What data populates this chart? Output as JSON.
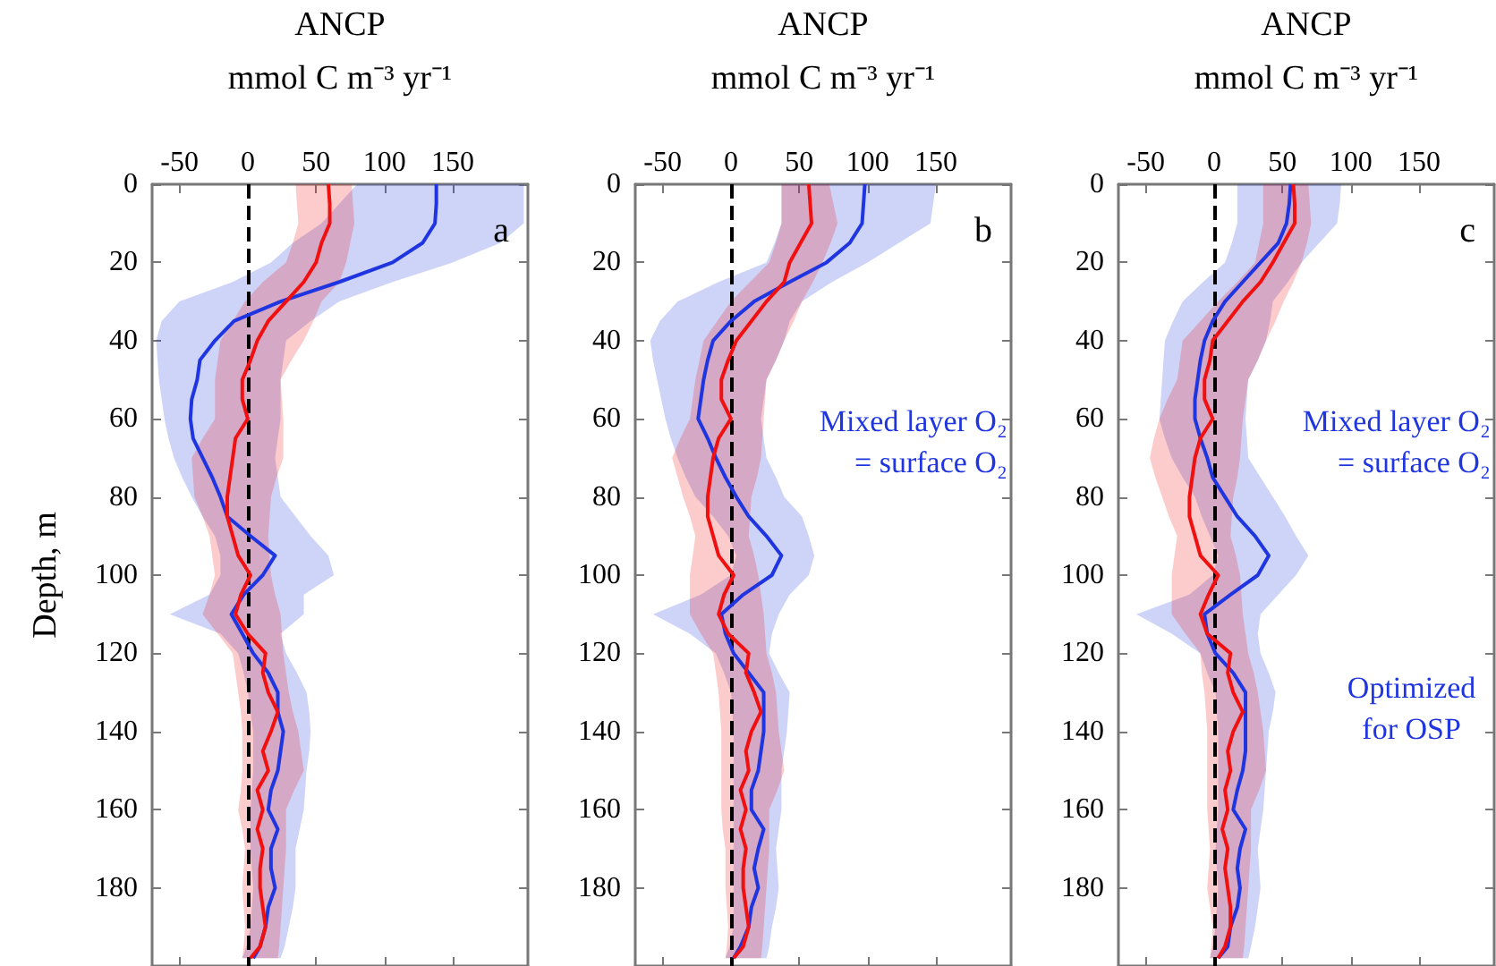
{
  "chart_data": [
    {
      "type": "line",
      "orientation": "horizontal",
      "xlabel": "ANCP\nmmol C m⁻³ yr⁻¹",
      "ylabel": "Depth, m",
      "annotations": [
        "a"
      ],
      "xlim": [
        -70,
        205
      ],
      "xticks": [
        -50,
        0,
        50,
        100,
        150
      ],
      "ylim": [
        200,
        0
      ],
      "yticks": [
        0,
        20,
        40,
        60,
        80,
        100,
        120,
        140,
        160,
        180
      ],
      "ref_lines": [
        {
          "axis": "x",
          "value": 0,
          "color": "#000000",
          "line_style": "dashed"
        }
      ],
      "x": [
        0,
        5,
        10,
        15,
        20,
        25,
        30,
        35,
        40,
        45,
        50,
        55,
        60,
        65,
        70,
        75,
        80,
        85,
        90,
        95,
        100,
        105,
        110,
        115,
        120,
        125,
        130,
        135,
        140,
        145,
        150,
        155,
        160,
        165,
        170,
        175,
        180,
        185,
        190,
        195,
        198
      ],
      "series": [
        {
          "color": "#1f35e0",
          "values": [
            138,
            138,
            137,
            128,
            106,
            67,
            24,
            -10,
            -24,
            -35,
            -37,
            -41,
            -42,
            -40,
            -33,
            -26,
            -20,
            -15,
            2,
            20,
            11,
            -3,
            -12,
            -4,
            4,
            15,
            22,
            22,
            26,
            24,
            22,
            17,
            15,
            22,
            17,
            17,
            20,
            15,
            13,
            9,
            4
          ],
          "lower": [
            80,
            67,
            54,
            33,
            17,
            -11,
            -50,
            -63,
            -67,
            -66,
            -65,
            -63,
            -61,
            -58,
            -54,
            -48,
            -41,
            -33,
            -24,
            -20,
            -20,
            -28,
            -57,
            -20,
            -7,
            -3,
            0,
            2,
            4,
            4,
            4,
            3,
            2,
            2,
            2,
            3,
            4,
            3,
            2,
            -1,
            -4
          ],
          "upper": [
            202,
            202,
            202,
            185,
            150,
            106,
            67,
            46,
            28,
            26,
            24,
            24,
            24,
            22,
            20,
            22,
            24,
            35,
            46,
            59,
            63,
            41,
            41,
            24,
            28,
            36,
            43,
            45,
            46,
            45,
            43,
            42,
            41,
            38,
            35,
            35,
            35,
            33,
            30,
            27,
            24
          ]
        },
        {
          "color": "#f01010",
          "values": [
            59,
            60,
            60,
            54,
            50,
            41,
            28,
            15,
            7,
            2,
            -4,
            -4,
            0,
            -9,
            -11,
            -13,
            -15,
            -15,
            -11,
            -7,
            2,
            -5,
            -9,
            0,
            13,
            11,
            15,
            22,
            17,
            11,
            15,
            7,
            11,
            7,
            11,
            9,
            9,
            11,
            13,
            9,
            2
          ],
          "lower": [
            35,
            36,
            37,
            33,
            28,
            11,
            -2,
            -11,
            -20,
            -22,
            -24,
            -24,
            -24,
            -33,
            -41,
            -40,
            -39,
            -33,
            -28,
            -26,
            -24,
            -28,
            -33,
            -22,
            -11,
            -9,
            -7,
            -5,
            -4,
            -4,
            -4,
            -5,
            -7,
            -4,
            -2,
            -3,
            -4,
            -3,
            -2,
            -3,
            -4
          ],
          "upper": [
            76,
            77,
            78,
            75,
            72,
            67,
            54,
            48,
            41,
            32,
            24,
            25,
            26,
            26,
            26,
            21,
            17,
            16,
            15,
            16,
            17,
            20,
            24,
            25,
            26,
            28,
            30,
            33,
            37,
            39,
            41,
            34,
            28,
            28,
            28,
            27,
            26,
            25,
            24,
            23,
            22
          ]
        }
      ]
    },
    {
      "type": "line",
      "orientation": "horizontal",
      "xlabel": "ANCP\nmmol C m⁻³ yr⁻¹",
      "annotations": [
        "b",
        "Mixed layer O₂\n= surface O₂"
      ],
      "xlim": [
        -70,
        205
      ],
      "xticks": [
        -50,
        0,
        50,
        100,
        150
      ],
      "ylim": [
        200,
        0
      ],
      "yticks": [
        0,
        20,
        40,
        60,
        80,
        100,
        120,
        140,
        160,
        180
      ],
      "ref_lines": [
        {
          "axis": "x",
          "value": 0,
          "color": "#000000",
          "line_style": "dashed"
        }
      ],
      "x": [
        0,
        5,
        10,
        15,
        20,
        25,
        30,
        35,
        40,
        45,
        50,
        55,
        60,
        65,
        70,
        75,
        80,
        85,
        90,
        95,
        100,
        105,
        110,
        115,
        120,
        125,
        130,
        135,
        140,
        145,
        150,
        155,
        160,
        165,
        170,
        175,
        180,
        185,
        190,
        195,
        198
      ],
      "series": [
        {
          "color": "#1f35e0",
          "values": [
            98,
            97,
            96,
            87,
            70,
            43,
            17,
            0,
            -13,
            -17,
            -20,
            -22,
            -24,
            -17,
            -11,
            -4,
            4,
            13,
            26,
            37,
            30,
            9,
            -7,
            -4,
            2,
            13,
            24,
            24,
            24,
            22,
            20,
            15,
            15,
            24,
            20,
            17,
            20,
            15,
            13,
            7,
            2
          ],
          "lower": [
            37,
            37,
            37,
            32,
            26,
            -9,
            -39,
            -52,
            -59,
            -57,
            -54,
            -51,
            -48,
            -44,
            -39,
            -33,
            -26,
            -13,
            -2,
            4,
            0,
            -22,
            -57,
            -30,
            -11,
            -5,
            0,
            1,
            2,
            2,
            2,
            2,
            2,
            2,
            2,
            2,
            2,
            2,
            2,
            -1,
            -4
          ],
          "upper": [
            150,
            148,
            146,
            123,
            100,
            74,
            52,
            43,
            39,
            33,
            26,
            24,
            22,
            24,
            26,
            33,
            39,
            52,
            57,
            61,
            57,
            43,
            35,
            30,
            28,
            35,
            43,
            42,
            41,
            39,
            37,
            37,
            37,
            35,
            33,
            34,
            35,
            33,
            30,
            28,
            26
          ]
        },
        {
          "color": "#f01010",
          "values": [
            57,
            58,
            59,
            51,
            43,
            39,
            26,
            15,
            4,
            -2,
            -7,
            -7,
            0,
            -9,
            -13,
            -15,
            -17,
            -17,
            -13,
            -9,
            2,
            -5,
            -9,
            -2,
            13,
            11,
            17,
            22,
            15,
            11,
            13,
            7,
            11,
            7,
            11,
            9,
            9,
            11,
            13,
            9,
            2
          ],
          "lower": [
            37,
            37,
            37,
            33,
            28,
            14,
            0,
            -10,
            -20,
            -23,
            -26,
            -28,
            -30,
            -37,
            -43,
            -39,
            -35,
            -30,
            -26,
            -28,
            -30,
            -30,
            -30,
            -22,
            -13,
            -11,
            -9,
            -8,
            -7,
            -7,
            -7,
            -7,
            -7,
            -6,
            -4,
            -4,
            -4,
            -3,
            -2,
            -3,
            -4
          ],
          "upper": [
            72,
            75,
            78,
            73,
            67,
            60,
            52,
            46,
            39,
            33,
            26,
            25,
            24,
            23,
            22,
            19,
            15,
            14,
            13,
            17,
            20,
            22,
            24,
            25,
            26,
            30,
            33,
            34,
            35,
            37,
            39,
            34,
            28,
            28,
            28,
            27,
            26,
            25,
            24,
            23,
            22
          ]
        }
      ]
    },
    {
      "type": "line",
      "orientation": "horizontal",
      "xlabel": "ANCP\nmmol C m⁻³ yr⁻¹",
      "annotations": [
        "c",
        "Mixed layer O₂\n= surface O₂",
        "Optimized\nfor OSP"
      ],
      "xlim": [
        -70,
        205
      ],
      "xticks": [
        -50,
        0,
        50,
        100,
        150
      ],
      "ylim": [
        200,
        0
      ],
      "yticks": [
        0,
        20,
        40,
        60,
        80,
        100,
        120,
        140,
        160,
        180
      ],
      "ref_lines": [
        {
          "axis": "x",
          "value": 0,
          "color": "#000000",
          "line_style": "dashed"
        }
      ],
      "x": [
        0,
        5,
        10,
        15,
        20,
        25,
        30,
        35,
        40,
        45,
        50,
        55,
        60,
        65,
        70,
        75,
        80,
        85,
        90,
        95,
        100,
        105,
        110,
        115,
        120,
        125,
        130,
        135,
        140,
        145,
        150,
        155,
        160,
        165,
        170,
        175,
        180,
        185,
        190,
        195,
        198
      ],
      "series": [
        {
          "color": "#1f35e0",
          "values": [
            56,
            55,
            53,
            47,
            34,
            21,
            8,
            -1,
            -7,
            -10,
            -12,
            -14,
            -14,
            -10,
            -5,
            -1,
            8,
            17,
            30,
            40,
            32,
            12,
            -7,
            -5,
            1,
            14,
            23,
            23,
            23,
            23,
            21,
            17,
            14,
            23,
            19,
            17,
            19,
            17,
            12,
            10,
            3
          ],
          "lower": [
            17,
            17,
            17,
            13,
            8,
            -8,
            -23,
            -30,
            -36,
            -37,
            -38,
            -39,
            -40,
            -36,
            -31,
            -23,
            -14,
            -9,
            -3,
            3,
            -1,
            -18,
            -57,
            -31,
            -10,
            -5,
            1,
            2,
            3,
            3,
            3,
            3,
            3,
            2,
            1,
            2,
            3,
            2,
            1,
            -1,
            -3
          ],
          "upper": [
            93,
            92,
            90,
            77,
            64,
            54,
            43,
            41,
            38,
            32,
            25,
            24,
            23,
            24,
            25,
            34,
            43,
            52,
            60,
            69,
            60,
            47,
            34,
            32,
            34,
            40,
            45,
            43,
            40,
            39,
            38,
            37,
            36,
            34,
            32,
            33,
            34,
            32,
            30,
            27,
            25
          ]
        },
        {
          "color": "#f01010",
          "values": [
            58,
            59,
            59,
            51,
            43,
            34,
            21,
            10,
            -1,
            -3,
            -7,
            -7,
            -1,
            -10,
            -14,
            -16,
            -18,
            -18,
            -14,
            -10,
            3,
            -4,
            -10,
            -5,
            12,
            10,
            14,
            21,
            14,
            10,
            12,
            8,
            10,
            6,
            10,
            8,
            10,
            12,
            12,
            8,
            3
          ],
          "lower": [
            36,
            36,
            36,
            33,
            30,
            17,
            3,
            -10,
            -23,
            -25,
            -27,
            -34,
            -40,
            -44,
            -47,
            -43,
            -38,
            -33,
            -27,
            -29,
            -31,
            -31,
            -31,
            -21,
            -10,
            -9,
            -7,
            -6,
            -5,
            -5,
            -5,
            -5,
            -5,
            -4,
            -3,
            -4,
            -5,
            -3,
            -1,
            -2,
            -3
          ],
          "upper": [
            69,
            70,
            71,
            68,
            64,
            58,
            51,
            45,
            38,
            32,
            25,
            23,
            21,
            20,
            19,
            17,
            14,
            13,
            12,
            16,
            19,
            20,
            21,
            23,
            25,
            29,
            32,
            34,
            36,
            37,
            38,
            33,
            27,
            27,
            27,
            26,
            25,
            24,
            23,
            22,
            21
          ]
        }
      ]
    }
  ]
}
